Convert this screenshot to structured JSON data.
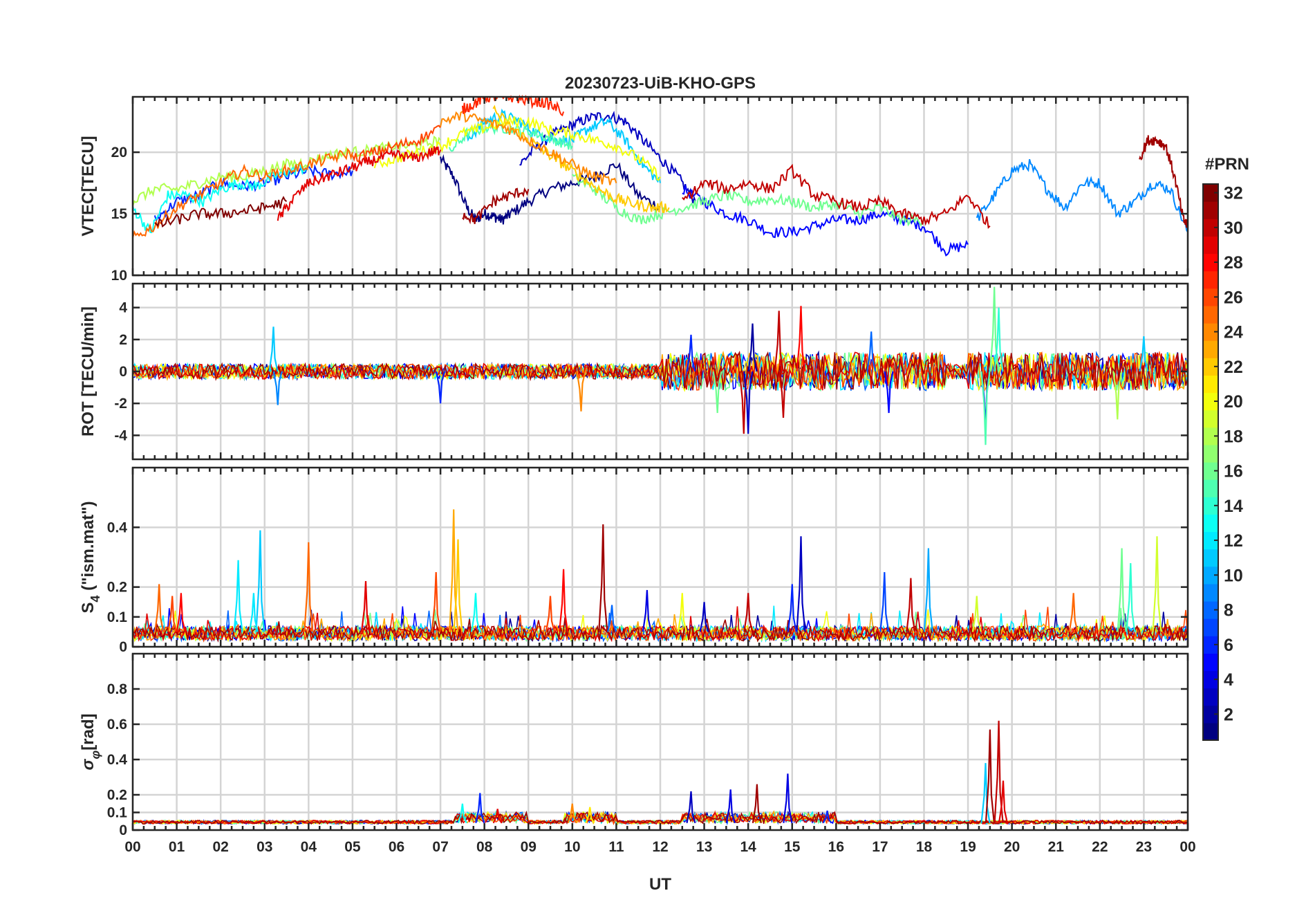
{
  "chart_data": {
    "type": "line",
    "title": "20230723-UiB-KHO-GPS",
    "xlabel": "UT",
    "x_ticks": [
      "00",
      "01",
      "02",
      "03",
      "04",
      "05",
      "06",
      "07",
      "08",
      "09",
      "10",
      "11",
      "12",
      "13",
      "14",
      "15",
      "16",
      "17",
      "18",
      "19",
      "20",
      "21",
      "22",
      "23",
      "00"
    ],
    "x_range_hours": [
      0,
      24
    ],
    "colorbar": {
      "label": "#PRN",
      "range": [
        1,
        32
      ],
      "ticks": [
        "2",
        "4",
        "6",
        "8",
        "10",
        "12",
        "14",
        "16",
        "18",
        "20",
        "22",
        "24",
        "26",
        "28",
        "30",
        "32"
      ],
      "colormap": "jet"
    },
    "panels": [
      {
        "id": "vtec",
        "ylabel": "VTEC[TECU]",
        "ylim": [
          10,
          24.5
        ],
        "yticks": [
          10,
          15,
          20
        ],
        "ytick_labels": [
          "10",
          "15",
          "20"
        ],
        "series": [
          {
            "prn": 1,
            "x": [
              7.0,
              7.3,
              7.6,
              7.8,
              8.0,
              8.2,
              8.4,
              8.6,
              9.0,
              9.5,
              10.0,
              10.5,
              11.0,
              11.5,
              12.0
            ],
            "y": [
              19.5,
              18.0,
              15.5,
              14.5,
              15.0,
              14.8,
              14.5,
              15.0,
              16.0,
              17.0,
              17.5,
              18.0,
              19.0,
              16.5,
              15.5
            ]
          },
          {
            "prn": 3,
            "x": [
              8.8,
              9.2,
              9.6,
              10.0,
              10.4,
              10.8,
              11.2,
              11.6,
              12.0,
              12.4,
              12.8
            ],
            "y": [
              19.0,
              20.5,
              21.5,
              22.2,
              22.8,
              23.0,
              22.5,
              21.0,
              19.5,
              18.0,
              16.0
            ]
          },
          {
            "prn": 5,
            "x": [
              12.5,
              13.0,
              13.5,
              14.0,
              14.5,
              15.0,
              15.5,
              16.0,
              16.5,
              17.0,
              17.5,
              18.0,
              18.5,
              19.0
            ],
            "y": [
              17.0,
              16.0,
              15.0,
              14.5,
              13.5,
              13.5,
              14.0,
              14.5,
              14.5,
              15.0,
              14.5,
              14.0,
              12.0,
              12.5
            ]
          },
          {
            "prn": 6,
            "x": [
              0.5,
              1.0,
              1.5,
              2.0,
              2.5,
              3.0,
              3.5,
              4.0,
              4.5,
              5.0
            ],
            "y": [
              14.5,
              16.0,
              16.5,
              17.5,
              17.2,
              17.5,
              18.0,
              18.5,
              18.2,
              18.5
            ]
          },
          {
            "prn": 9,
            "x": [
              19.2,
              19.6,
              20.0,
              20.4,
              20.8,
              21.2,
              21.6,
              22.0,
              22.4,
              22.8,
              23.2,
              23.6,
              24.0
            ],
            "y": [
              14.5,
              16.5,
              18.5,
              19.0,
              17.0,
              15.5,
              17.5,
              17.5,
              15.0,
              16.0,
              17.5,
              17.0,
              13.5
            ]
          },
          {
            "prn": 11,
            "x": [
              7.6,
              8.0,
              8.4,
              8.8,
              9.2,
              9.6,
              10.0,
              10.4,
              10.8,
              11.2,
              11.6,
              12.0
            ],
            "y": [
              21.0,
              22.5,
              23.0,
              22.5,
              21.5,
              21.0,
              21.0,
              22.0,
              22.5,
              21.0,
              19.0,
              17.5
            ]
          },
          {
            "prn": 13,
            "x": [
              0.0,
              0.4,
              0.8,
              1.2,
              1.6,
              2.0,
              2.4,
              2.8,
              3.2,
              3.6,
              4.0
            ],
            "y": [
              15.5,
              13.5,
              16.5,
              16.5,
              16.0,
              17.0,
              17.5,
              17.2,
              18.0,
              18.5,
              18.8
            ]
          },
          {
            "prn": 15,
            "x": [
              7.2,
              7.6,
              8.0,
              8.4,
              8.8,
              9.2,
              9.6,
              10.0
            ],
            "y": [
              20.0,
              21.5,
              22.0,
              22.0,
              21.8,
              21.5,
              21.0,
              20.5
            ]
          },
          {
            "prn": 16,
            "x": [
              10.0,
              10.5,
              11.0,
              11.5,
              12.0,
              12.5,
              13.0,
              13.5,
              14.0,
              14.5,
              15.0,
              15.5,
              16.0,
              16.5,
              17.0,
              17.5,
              18.0
            ],
            "y": [
              18.0,
              17.0,
              15.5,
              14.5,
              15.0,
              15.5,
              16.0,
              16.5,
              16.0,
              16.2,
              16.0,
              15.5,
              15.8,
              15.0,
              15.5,
              14.5,
              14.5
            ]
          },
          {
            "prn": 18,
            "x": [
              0.0,
              0.5,
              1.0,
              1.5,
              2.0,
              2.5,
              3.0,
              3.5,
              4.0,
              4.5,
              5.0,
              5.5,
              6.0,
              6.5,
              7.0
            ],
            "y": [
              16.0,
              17.0,
              17.0,
              17.5,
              18.0,
              18.0,
              18.5,
              19.0,
              19.2,
              19.8,
              20.0,
              20.2,
              20.5,
              20.5,
              21.0
            ]
          },
          {
            "prn": 20,
            "x": [
              5.5,
              6.0,
              6.5,
              7.0,
              7.5,
              8.0,
              8.5,
              9.0,
              9.5,
              10.0,
              10.5,
              11.0,
              11.5,
              12.0
            ],
            "y": [
              19.0,
              19.5,
              20.0,
              20.5,
              21.5,
              22.0,
              22.5,
              22.5,
              21.8,
              21.5,
              21.0,
              20.5,
              19.5,
              18.0
            ]
          },
          {
            "prn": 22,
            "x": [
              8.2,
              8.6,
              9.0,
              9.4,
              9.8,
              10.2,
              10.6,
              11.0,
              11.4,
              11.8,
              12.2
            ],
            "y": [
              23.5,
              22.0,
              21.0,
              20.0,
              19.0,
              18.0,
              17.0,
              16.2,
              15.8,
              15.5,
              15.5
            ]
          },
          {
            "prn": 24,
            "x": [
              7.0,
              7.5,
              8.0,
              8.5,
              9.0,
              9.5,
              10.0,
              10.5,
              11.0
            ],
            "y": [
              22.5,
              23.0,
              22.5,
              22.0,
              21.0,
              20.0,
              19.0,
              18.0,
              17.5
            ]
          },
          {
            "prn": 25,
            "x": [
              0.0,
              0.5,
              1.0,
              1.5,
              2.0,
              2.5,
              3.0,
              3.5,
              4.0,
              4.5,
              5.0
            ],
            "y": [
              13.0,
              14.0,
              15.5,
              16.5,
              17.5,
              18.5,
              18.0,
              18.5,
              19.0,
              19.5,
              20.0
            ]
          },
          {
            "prn": 26,
            "x": [
              5.0,
              5.5,
              6.0,
              6.5,
              7.0
            ],
            "y": [
              19.5,
              20.0,
              20.5,
              21.0,
              22.0
            ]
          },
          {
            "prn": 27,
            "x": [
              7.5,
              7.8,
              8.0,
              8.3,
              8.6,
              9.0,
              9.4,
              9.8
            ],
            "y": [
              23.5,
              24.0,
              24.5,
              24.5,
              24.5,
              24.2,
              24.0,
              23.3
            ]
          },
          {
            "prn": 29,
            "x": [
              3.3,
              3.6,
              4.0,
              4.4,
              4.8,
              5.2,
              5.6,
              6.0,
              6.4,
              6.8,
              7.0
            ],
            "y": [
              14.5,
              16.0,
              17.5,
              18.0,
              18.5,
              19.0,
              19.5,
              19.8,
              19.5,
              20.0,
              20.2
            ]
          },
          {
            "prn": 31,
            "x": [
              7.5,
              7.8,
              8.2,
              8.6,
              9.0
            ],
            "y": [
              15.0,
              14.5,
              16.0,
              16.5,
              17.0
            ]
          },
          {
            "prn": 32,
            "x": [
              0.5,
              1.0,
              1.5,
              2.0,
              2.5,
              3.0,
              3.5
            ],
            "y": [
              14.0,
              14.5,
              15.0,
              15.0,
              15.2,
              15.5,
              16.0
            ]
          },
          {
            "prn": 30,
            "x": [
              12.5,
              13.0,
              13.5,
              14.0,
              14.5,
              15.0,
              15.5,
              16.0,
              16.5,
              17.0,
              17.5,
              18.0,
              18.5,
              19.0,
              19.5
            ],
            "y": [
              16.0,
              17.5,
              17.0,
              17.5,
              17.0,
              18.5,
              16.5,
              16.0,
              15.5,
              16.0,
              15.0,
              14.5,
              15.0,
              16.5,
              14.0
            ]
          },
          {
            "prn": 31,
            "x": [
              22.9,
              23.1,
              23.3,
              23.5,
              23.7,
              23.9,
              24.0
            ],
            "y": [
              19.5,
              21.0,
              21.0,
              20.5,
              18.0,
              14.5,
              14.0
            ]
          }
        ]
      },
      {
        "id": "rot",
        "ylabel": "ROT [TECU/min]",
        "ylim": [
          -5.5,
          5.5
        ],
        "yticks": [
          -4,
          -2,
          0,
          2,
          4
        ],
        "ytick_labels": [
          "-4",
          "-2",
          "0",
          "2",
          "4"
        ],
        "spikes": [
          {
            "t": 3.2,
            "v": 2.8,
            "prn": 11
          },
          {
            "t": 3.3,
            "v": -2.1,
            "prn": 9
          },
          {
            "t": 7.0,
            "v": -2.0,
            "prn": 6
          },
          {
            "t": 10.2,
            "v": -2.5,
            "prn": 24
          },
          {
            "t": 12.7,
            "v": 2.3,
            "prn": 6
          },
          {
            "t": 13.3,
            "v": -2.6,
            "prn": 16
          },
          {
            "t": 13.9,
            "v": -3.9,
            "prn": 30
          },
          {
            "t": 14.0,
            "v": -3.9,
            "prn": 3
          },
          {
            "t": 14.1,
            "v": 3.0,
            "prn": 2
          },
          {
            "t": 14.8,
            "v": -2.9,
            "prn": 30
          },
          {
            "t": 15.2,
            "v": 4.1,
            "prn": 28
          },
          {
            "t": 14.7,
            "v": 3.8,
            "prn": 30
          },
          {
            "t": 16.8,
            "v": 2.5,
            "prn": 8
          },
          {
            "t": 17.2,
            "v": -2.6,
            "prn": 5
          },
          {
            "t": 19.4,
            "v": -3.7,
            "prn": 5
          },
          {
            "t": 19.4,
            "v": -4.6,
            "prn": 15
          },
          {
            "t": 19.6,
            "v": 5.3,
            "prn": 16
          },
          {
            "t": 19.7,
            "v": 4.0,
            "prn": 14
          },
          {
            "t": 22.4,
            "v": -3.0,
            "prn": 18
          },
          {
            "t": 23.0,
            "v": 2.2,
            "prn": 11
          }
        ]
      },
      {
        "id": "s4",
        "ylabel": "S4 (\"ism.mat\")",
        "ylabel_main": "S",
        "ylabel_sub": "4",
        "ylabel_rest": " (\"ism.mat\")",
        "ylim": [
          0,
          0.6
        ],
        "yticks": [
          0,
          0.1,
          0.2,
          0.4
        ],
        "ytick_labels": [
          "0",
          "0.1",
          "0.2",
          "0.4"
        ],
        "spikes": [
          {
            "t": 0.6,
            "v": 0.21,
            "prn": 25
          },
          {
            "t": 0.9,
            "v": 0.17,
            "prn": 26
          },
          {
            "t": 1.1,
            "v": 0.18,
            "prn": 28
          },
          {
            "t": 2.4,
            "v": 0.29,
            "prn": 12
          },
          {
            "t": 2.9,
            "v": 0.39,
            "prn": 11
          },
          {
            "t": 2.75,
            "v": 0.18,
            "prn": 12
          },
          {
            "t": 4.0,
            "v": 0.35,
            "prn": 25
          },
          {
            "t": 5.3,
            "v": 0.22,
            "prn": 29
          },
          {
            "t": 6.9,
            "v": 0.25,
            "prn": 26
          },
          {
            "t": 7.3,
            "v": 0.46,
            "prn": 23
          },
          {
            "t": 7.4,
            "v": 0.36,
            "prn": 22
          },
          {
            "t": 7.8,
            "v": 0.18,
            "prn": 13
          },
          {
            "t": 9.5,
            "v": 0.17,
            "prn": 26
          },
          {
            "t": 9.8,
            "v": 0.26,
            "prn": 28
          },
          {
            "t": 10.7,
            "v": 0.41,
            "prn": 31
          },
          {
            "t": 10.9,
            "v": 0.14,
            "prn": 8
          },
          {
            "t": 11.7,
            "v": 0.19,
            "prn": 4
          },
          {
            "t": 12.5,
            "v": 0.18,
            "prn": 20
          },
          {
            "t": 13.0,
            "v": 0.15,
            "prn": 3
          },
          {
            "t": 14.0,
            "v": 0.18,
            "prn": 30
          },
          {
            "t": 15.2,
            "v": 0.37,
            "prn": 3
          },
          {
            "t": 15.0,
            "v": 0.21,
            "prn": 6
          },
          {
            "t": 17.1,
            "v": 0.25,
            "prn": 7
          },
          {
            "t": 17.7,
            "v": 0.23,
            "prn": 30
          },
          {
            "t": 18.1,
            "v": 0.33,
            "prn": 10
          },
          {
            "t": 19.2,
            "v": 0.17,
            "prn": 19
          },
          {
            "t": 21.4,
            "v": 0.18,
            "prn": 25
          },
          {
            "t": 22.5,
            "v": 0.33,
            "prn": 16
          },
          {
            "t": 22.7,
            "v": 0.28,
            "prn": 14
          },
          {
            "t": 23.3,
            "v": 0.37,
            "prn": 19
          }
        ]
      },
      {
        "id": "sigma_phi",
        "ylabel": "σφ[rad]",
        "ylabel_main": "σ",
        "ylabel_sub": "φ",
        "ylabel_rest": "[rad]",
        "ylim": [
          0,
          1.0
        ],
        "yticks": [
          0,
          0.1,
          0.2,
          0.4,
          0.6,
          0.8
        ],
        "ytick_labels": [
          "0",
          "0.1",
          "0.2",
          "0.4",
          "0.6",
          "0.8"
        ],
        "spikes": [
          {
            "t": 7.5,
            "v": 0.15,
            "prn": 13
          },
          {
            "t": 7.9,
            "v": 0.21,
            "prn": 6
          },
          {
            "t": 8.3,
            "v": 0.12,
            "prn": 29
          },
          {
            "t": 10.0,
            "v": 0.15,
            "prn": 24
          },
          {
            "t": 10.4,
            "v": 0.13,
            "prn": 21
          },
          {
            "t": 12.7,
            "v": 0.22,
            "prn": 3
          },
          {
            "t": 13.6,
            "v": 0.23,
            "prn": 4
          },
          {
            "t": 14.2,
            "v": 0.26,
            "prn": 31
          },
          {
            "t": 14.9,
            "v": 0.32,
            "prn": 4
          },
          {
            "t": 15.8,
            "v": 0.11,
            "prn": 6
          },
          {
            "t": 19.4,
            "v": 0.38,
            "prn": 11
          },
          {
            "t": 19.5,
            "v": 0.57,
            "prn": 31
          },
          {
            "t": 19.7,
            "v": 0.62,
            "prn": 30
          },
          {
            "t": 19.8,
            "v": 0.28,
            "prn": 29
          }
        ]
      }
    ]
  }
}
